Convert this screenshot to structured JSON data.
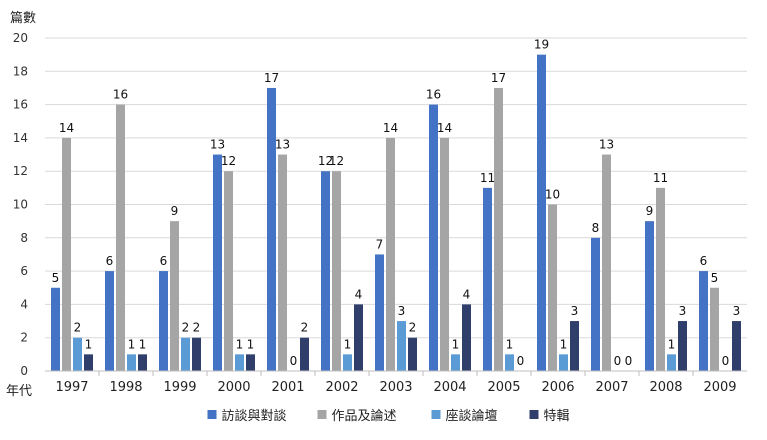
{
  "chart_data": {
    "type": "bar",
    "title": "",
    "ylabel": "篇數",
    "xlabel": "年代",
    "ylim": [
      0,
      20
    ],
    "yticks": [
      0,
      2,
      4,
      6,
      8,
      10,
      12,
      14,
      16,
      18,
      20
    ],
    "grid": true,
    "legend_position": "bottom",
    "categories": [
      "1997",
      "1998",
      "1999",
      "2000",
      "2001",
      "2002",
      "2003",
      "2004",
      "2005",
      "2006",
      "2007",
      "2008",
      "2009"
    ],
    "series": [
      {
        "name": "訪談與對談",
        "color": "#4472c4",
        "values": [
          5,
          6,
          6,
          13,
          17,
          12,
          7,
          16,
          11,
          19,
          8,
          9,
          6
        ]
      },
      {
        "name": "作品及論述",
        "color": "#a5a5a5",
        "values": [
          14,
          16,
          9,
          12,
          13,
          12,
          14,
          14,
          17,
          10,
          13,
          11,
          5
        ]
      },
      {
        "name": "座談論壇",
        "color": "#5b9bd5",
        "values": [
          2,
          1,
          2,
          1,
          0,
          1,
          3,
          1,
          1,
          1,
          0,
          1,
          0
        ]
      },
      {
        "name": "特輯",
        "color": "#2f3e6b",
        "values": [
          1,
          1,
          2,
          1,
          2,
          4,
          2,
          4,
          0,
          3,
          0,
          3,
          3
        ]
      }
    ]
  }
}
